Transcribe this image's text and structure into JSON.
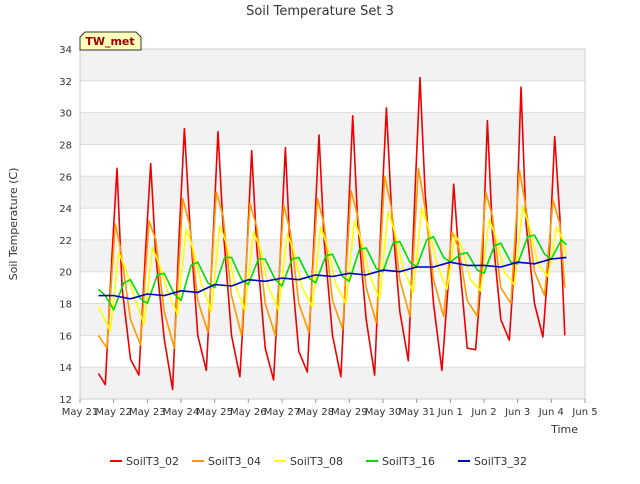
{
  "chart_data": {
    "type": "line",
    "title": "Soil Temperature Set 3",
    "xlabel": "Time",
    "ylabel": "Soil Temperature (C)",
    "annotation": "TW_met",
    "ylim": [
      12,
      34
    ],
    "yticks": [
      12,
      14,
      16,
      18,
      20,
      22,
      24,
      26,
      28,
      30,
      32,
      34
    ],
    "xlim": [
      0,
      15
    ],
    "xticks": [
      {
        "x": 0,
        "label": "May 21"
      },
      {
        "x": 1,
        "label": "May 22"
      },
      {
        "x": 2,
        "label": "May 23"
      },
      {
        "x": 3,
        "label": "May 24"
      },
      {
        "x": 4,
        "label": "May 25"
      },
      {
        "x": 5,
        "label": "May 26"
      },
      {
        "x": 6,
        "label": "May 27"
      },
      {
        "x": 7,
        "label": "May 28"
      },
      {
        "x": 8,
        "label": "May 29"
      },
      {
        "x": 9,
        "label": "May 30"
      },
      {
        "x": 10,
        "label": "May 31"
      },
      {
        "x": 11,
        "label": "Jun 1"
      },
      {
        "x": 12,
        "label": "Jun 2"
      },
      {
        "x": 13,
        "label": "Jun 3"
      },
      {
        "x": 14,
        "label": "Jun 4"
      },
      {
        "x": 15,
        "label": "Jun 5"
      }
    ],
    "grid": true,
    "legend": "bottom",
    "series": [
      {
        "name": "SoilT3_02",
        "color": "#ee0000",
        "x": [
          0.55,
          0.75,
          0.95,
          1.1,
          1.25,
          1.5,
          1.75,
          1.95,
          2.1,
          2.25,
          2.5,
          2.75,
          2.95,
          3.1,
          3.25,
          3.5,
          3.75,
          3.95,
          4.1,
          4.25,
          4.5,
          4.75,
          4.95,
          5.1,
          5.25,
          5.5,
          5.75,
          5.95,
          6.1,
          6.25,
          6.5,
          6.75,
          6.95,
          7.1,
          7.25,
          7.5,
          7.75,
          7.95,
          8.1,
          8.25,
          8.5,
          8.75,
          8.95,
          9.1,
          9.25,
          9.5,
          9.75,
          9.95,
          10.1,
          10.25,
          10.5,
          10.75,
          10.95,
          11.1,
          11.25,
          11.5,
          11.75,
          11.95,
          12.1,
          12.25,
          12.5,
          12.75,
          12.95,
          13.1,
          13.25,
          13.5,
          13.75,
          13.95,
          14.1,
          14.25,
          14.4
        ],
        "y": [
          13.6,
          12.9,
          21.0,
          26.5,
          19.0,
          14.5,
          13.5,
          21.5,
          26.8,
          21.0,
          15.8,
          12.6,
          22.5,
          29.0,
          23.5,
          16.0,
          13.8,
          22.0,
          28.8,
          22.8,
          16.0,
          13.4,
          21.0,
          27.6,
          21.5,
          15.2,
          13.2,
          21.0,
          27.8,
          21.0,
          15.0,
          13.7,
          22.0,
          28.6,
          22.0,
          16.0,
          13.4,
          22.5,
          29.8,
          23.0,
          17.0,
          13.5,
          23.5,
          30.3,
          24.0,
          17.5,
          14.4,
          25.0,
          32.2,
          25.0,
          18.0,
          13.8,
          19.5,
          25.5,
          21.0,
          15.2,
          15.1,
          20.5,
          29.5,
          22.5,
          17.0,
          15.7,
          22.0,
          31.6,
          23.0,
          18.0,
          15.9,
          21.5,
          28.5,
          23.5,
          16.0
        ]
      },
      {
        "name": "SoilT3_04",
        "color": "#ff9900",
        "x": [
          0.55,
          0.8,
          1.05,
          1.2,
          1.5,
          1.8,
          2.05,
          2.25,
          2.5,
          2.8,
          3.05,
          3.25,
          3.5,
          3.8,
          4.05,
          4.25,
          4.5,
          4.8,
          5.05,
          5.25,
          5.5,
          5.8,
          6.05,
          6.25,
          6.5,
          6.8,
          7.05,
          7.25,
          7.5,
          7.8,
          8.05,
          8.25,
          8.5,
          8.8,
          9.05,
          9.25,
          9.5,
          9.8,
          10.05,
          10.25,
          10.5,
          10.8,
          11.05,
          11.25,
          11.5,
          11.8,
          12.05,
          12.25,
          12.5,
          12.8,
          13.05,
          13.25,
          13.5,
          13.8,
          14.05,
          14.25,
          14.4
        ],
        "y": [
          16.0,
          15.2,
          23.0,
          21.5,
          17.0,
          15.4,
          23.2,
          22.0,
          17.5,
          15.2,
          24.6,
          23.0,
          18.2,
          16.2,
          25.0,
          23.5,
          18.5,
          16.0,
          24.3,
          22.8,
          18.0,
          16.0,
          24.2,
          22.5,
          18.0,
          16.2,
          24.6,
          23.0,
          18.2,
          16.4,
          25.1,
          23.5,
          19.0,
          16.8,
          26.0,
          24.0,
          19.5,
          17.2,
          26.5,
          24.0,
          19.5,
          17.2,
          22.5,
          21.5,
          18.2,
          17.2,
          25.0,
          23.5,
          19.0,
          18.0,
          26.4,
          24.0,
          20.0,
          18.5,
          24.5,
          23.0,
          19.0
        ]
      },
      {
        "name": "SoilT3_08",
        "color": "#ffff00",
        "x": [
          0.55,
          0.9,
          1.15,
          1.35,
          1.6,
          1.9,
          2.15,
          2.35,
          2.6,
          2.9,
          3.15,
          3.35,
          3.6,
          3.9,
          4.15,
          4.35,
          4.6,
          4.9,
          5.15,
          5.35,
          5.6,
          5.9,
          6.15,
          6.35,
          6.6,
          6.9,
          7.15,
          7.35,
          7.6,
          7.9,
          8.15,
          8.35,
          8.6,
          8.9,
          9.15,
          9.35,
          9.6,
          9.9,
          10.15,
          10.35,
          10.6,
          10.9,
          11.15,
          11.35,
          11.6,
          11.9,
          12.15,
          12.35,
          12.6,
          12.9,
          13.15,
          13.35,
          13.6,
          13.9,
          14.15,
          14.35,
          14.45
        ],
        "y": [
          17.8,
          16.3,
          21.2,
          20.2,
          18.5,
          16.7,
          21.5,
          20.5,
          18.8,
          17.3,
          22.7,
          21.5,
          19.3,
          17.5,
          22.9,
          21.8,
          19.2,
          17.6,
          22.5,
          21.5,
          19.0,
          17.6,
          22.4,
          21.3,
          19.0,
          17.8,
          22.8,
          21.6,
          19.2,
          18.0,
          23.2,
          22.0,
          19.8,
          18.3,
          23.8,
          22.5,
          20.2,
          18.7,
          24.0,
          22.8,
          20.5,
          18.9,
          22.3,
          21.5,
          19.5,
          18.8,
          23.3,
          22.2,
          20.0,
          19.2,
          24.1,
          22.8,
          20.5,
          19.7,
          22.8,
          22.0,
          21.0
        ]
      },
      {
        "name": "SoilT3_16",
        "color": "#00dd00",
        "x": [
          0.55,
          0.75,
          1.0,
          1.3,
          1.5,
          1.8,
          2.0,
          2.3,
          2.5,
          2.8,
          3.0,
          3.3,
          3.5,
          3.8,
          4.0,
          4.3,
          4.5,
          4.8,
          5.0,
          5.3,
          5.5,
          5.8,
          6.0,
          6.3,
          6.5,
          6.8,
          7.0,
          7.3,
          7.5,
          7.8,
          8.0,
          8.3,
          8.5,
          8.8,
          9.0,
          9.3,
          9.5,
          9.8,
          10.0,
          10.3,
          10.5,
          10.8,
          11.0,
          11.3,
          11.5,
          11.8,
          12.0,
          12.3,
          12.5,
          12.8,
          13.0,
          13.3,
          13.5,
          13.8,
          14.0,
          14.3,
          14.45
        ],
        "y": [
          18.9,
          18.5,
          17.6,
          19.3,
          19.5,
          18.3,
          18.0,
          19.8,
          19.9,
          18.6,
          18.2,
          20.4,
          20.6,
          19.3,
          19.0,
          20.9,
          20.9,
          19.5,
          19.2,
          20.8,
          20.8,
          19.5,
          19.1,
          20.8,
          20.9,
          19.6,
          19.3,
          21.0,
          21.1,
          19.7,
          19.4,
          21.4,
          21.5,
          20.2,
          20.0,
          21.8,
          21.9,
          20.6,
          20.3,
          22.0,
          22.2,
          20.9,
          20.6,
          21.1,
          21.2,
          20.1,
          19.9,
          21.6,
          21.8,
          20.6,
          20.5,
          22.2,
          22.3,
          21.1,
          20.8,
          22.0,
          21.7
        ]
      },
      {
        "name": "SoilT3_32",
        "color": "#0000bb",
        "x": [
          0.55,
          1.0,
          1.5,
          2.0,
          2.5,
          3.0,
          3.5,
          4.0,
          4.5,
          5.0,
          5.5,
          6.0,
          6.5,
          7.0,
          7.5,
          8.0,
          8.5,
          9.0,
          9.5,
          10.0,
          10.5,
          11.0,
          11.5,
          12.0,
          12.5,
          13.0,
          13.5,
          14.0,
          14.45
        ],
        "y": [
          18.5,
          18.5,
          18.3,
          18.6,
          18.5,
          18.8,
          18.7,
          19.2,
          19.1,
          19.5,
          19.4,
          19.6,
          19.5,
          19.8,
          19.7,
          19.9,
          19.8,
          20.1,
          20.0,
          20.3,
          20.3,
          20.6,
          20.4,
          20.4,
          20.3,
          20.6,
          20.5,
          20.8,
          20.9
        ]
      }
    ]
  }
}
